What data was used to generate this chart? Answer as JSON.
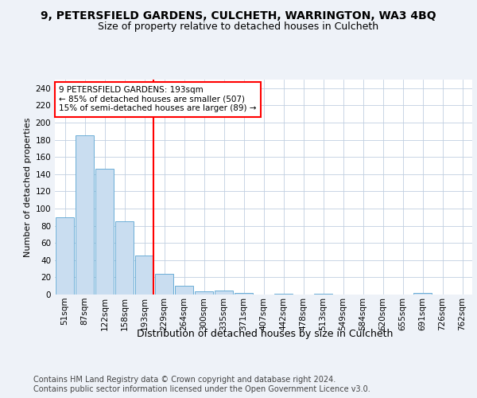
{
  "title1": "9, PETERSFIELD GARDENS, CULCHETH, WARRINGTON, WA3 4BQ",
  "title2": "Size of property relative to detached houses in Culcheth",
  "xlabel": "Distribution of detached houses by size in Culcheth",
  "ylabel": "Number of detached properties",
  "footnote1": "Contains HM Land Registry data © Crown copyright and database right 2024.",
  "footnote2": "Contains public sector information licensed under the Open Government Licence v3.0.",
  "annotation_line1": "9 PETERSFIELD GARDENS: 193sqm",
  "annotation_line2": "← 85% of detached houses are smaller (507)",
  "annotation_line3": "15% of semi-detached houses are larger (89) →",
  "bar_labels": [
    "51sqm",
    "87sqm",
    "122sqm",
    "158sqm",
    "193sqm",
    "229sqm",
    "264sqm",
    "300sqm",
    "335sqm",
    "371sqm",
    "407sqm",
    "442sqm",
    "478sqm",
    "513sqm",
    "549sqm",
    "584sqm",
    "620sqm",
    "655sqm",
    "691sqm",
    "726sqm",
    "762sqm"
  ],
  "bar_values": [
    90,
    185,
    146,
    85,
    45,
    24,
    10,
    4,
    5,
    2,
    0,
    1,
    0,
    1,
    0,
    0,
    0,
    0,
    2,
    0,
    0
  ],
  "bar_color": "#c9ddf0",
  "bar_edge_color": "#6baed6",
  "red_line_index": 4,
  "ylim": [
    0,
    250
  ],
  "yticks": [
    0,
    20,
    40,
    60,
    80,
    100,
    120,
    140,
    160,
    180,
    200,
    220,
    240
  ],
  "bg_color": "#eef2f8",
  "plot_bg_color": "#ffffff",
  "title1_fontsize": 10,
  "title2_fontsize": 9,
  "xlabel_fontsize": 9,
  "ylabel_fontsize": 8,
  "tick_fontsize": 7.5,
  "footnote_fontsize": 7,
  "annotation_fontsize": 7.5
}
